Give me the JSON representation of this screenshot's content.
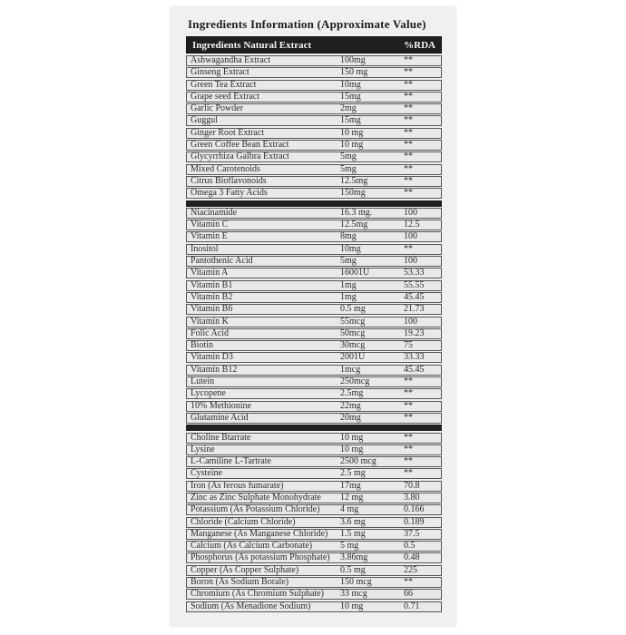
{
  "page": {
    "title": "Ingredients Information (Approximate Value)"
  },
  "colors": {
    "page_bg": "#ffffff",
    "card_bg": "#f0f0f0",
    "header_bg": "#1f1f1f",
    "header_text": "#f5f5f5",
    "row_bg": "#e9e9e9",
    "row_border": "#565656",
    "row_text": "#2d2d2d",
    "separator_bg": "#1f1f1f"
  },
  "table": {
    "header": {
      "name_label": "Ingredients Natural Extract",
      "rda_label": "%RDA"
    },
    "no_rda_symbol": "**",
    "sections": [
      {
        "rows": [
          {
            "name": "Ashwagandha Extract",
            "amount": "100mg",
            "rda": "**"
          },
          {
            "name": "Ginseng Extract",
            "amount": "150 mg",
            "rda": "**"
          },
          {
            "name": "Green Tea Extract",
            "amount": "10mg",
            "rda": "**"
          },
          {
            "name": "Grape seed Extract",
            "amount": "15mg",
            "rda": "**"
          },
          {
            "name": "Garlic Powder",
            "amount": "2mg",
            "rda": "**"
          },
          {
            "name": "Guggul",
            "amount": "15mg",
            "rda": "**"
          },
          {
            "name": "Ginger Root Extract",
            "amount": "10 mg",
            "rda": "**"
          },
          {
            "name": "Green Coffee Bean Extract",
            "amount": "10 mg",
            "rda": "**"
          },
          {
            "name": "Glycyrrhiza Galbra Extract",
            "amount": "5mg",
            "rda": "**"
          },
          {
            "name": "Mixed Carotenoids",
            "amount": "5mg",
            "rda": "**"
          },
          {
            "name": "Citrus Bioflavonoids",
            "amount": "12.5mg",
            "rda": "**"
          },
          {
            "name": "Omega 3 Fatty Acids",
            "amount": "150mg",
            "rda": "**"
          }
        ]
      },
      {
        "rows": [
          {
            "name": "Niacinamide",
            "amount": "16.3 mg.",
            "rda": "100"
          },
          {
            "name": "Vitamin C",
            "amount": "12.5mg",
            "rda": "12.5"
          },
          {
            "name": "Vitamin E",
            "amount": "8mg",
            "rda": "100"
          },
          {
            "name": "Inositol",
            "amount": "10mg",
            "rda": "**"
          },
          {
            "name": "Pantothenic Acid",
            "amount": "5mg",
            "rda": "100"
          },
          {
            "name": "Vitamin A",
            "amount": "16001U",
            "rda": "53.33"
          },
          {
            "name": "Vitamin B1",
            "amount": "1mg",
            "rda": "55.55"
          },
          {
            "name": "Vitamin B2",
            "amount": "1mg",
            "rda": "45.45"
          },
          {
            "name": "Vitamin B6",
            "amount": "0.5 mg",
            "rda": "21.73"
          },
          {
            "name": "Vitamin K",
            "amount": "55mcg",
            "rda": "100"
          },
          {
            "name": "Folic Acid",
            "amount": "50mcg",
            "rda": "19.23"
          },
          {
            "name": "Biotin",
            "amount": "30mcg",
            "rda": "75"
          },
          {
            "name": "Vitamin D3",
            "amount": "2001U",
            "rda": "33.33"
          },
          {
            "name": "Vitamin B12",
            "amount": "1mcg",
            "rda": "45.45"
          },
          {
            "name": "Lutein",
            "amount": "250mcg",
            "rda": "**"
          },
          {
            "name": "Lycopene",
            "amount": "2.5mg",
            "rda": "**"
          },
          {
            "name": "10% Methionine",
            "amount": "22mg",
            "rda": "**"
          },
          {
            "name": "Glutamine Acid",
            "amount": "20mg",
            "rda": "**"
          }
        ]
      },
      {
        "rows": [
          {
            "name": "Choline Btarrate",
            "amount": "10 mg",
            "rda": "**"
          },
          {
            "name": "Lysine",
            "amount": "10 mg",
            "rda": "**"
          },
          {
            "name": "L-Camiline L-Tartrate",
            "amount": "2500 mcg",
            "rda": "**"
          },
          {
            "name": "Cysteine",
            "amount": "2.5 mg",
            "rda": "**"
          },
          {
            "name": "Iron (As ferous fumarate)",
            "amount": "17mg",
            "rda": "70.8"
          },
          {
            "name": "Zinc as Zinc Sulphate Monohydrate",
            "amount": "12 mg",
            "rda": "3.80"
          },
          {
            "name": "Potassium (As Potassium Chloride)",
            "amount": "4 mg",
            "rda": "0.166"
          },
          {
            "name": "Chloride (Calcium Chloride)",
            "amount": "3.6 mg",
            "rda": "0.189"
          },
          {
            "name": "Manganese (As Manganese Chloride)",
            "amount": "1.5 mg",
            "rda": "37.5"
          },
          {
            "name": "Calcium (As Calcium Carbonate)",
            "amount": "5 mg",
            "rda": "0.5"
          },
          {
            "name": "Phosphorus (As potassium Phosphate)",
            "amount": "3.86mg",
            "rda": "0.48"
          },
          {
            "name": "Copper (As Copper Sulphate)",
            "amount": "0.5 mg",
            "rda": "225"
          },
          {
            "name": "Boron (As Sodium Borale)",
            "amount": "150 mcg",
            "rda": "**"
          },
          {
            "name": "Chromium (As Chromium Sulphate)",
            "amount": "33 mcg",
            "rda": "66"
          },
          {
            "name": "Sodium (As Menadione Sodium)",
            "amount": "10 mg",
            "rda": "0.71"
          }
        ]
      }
    ]
  }
}
